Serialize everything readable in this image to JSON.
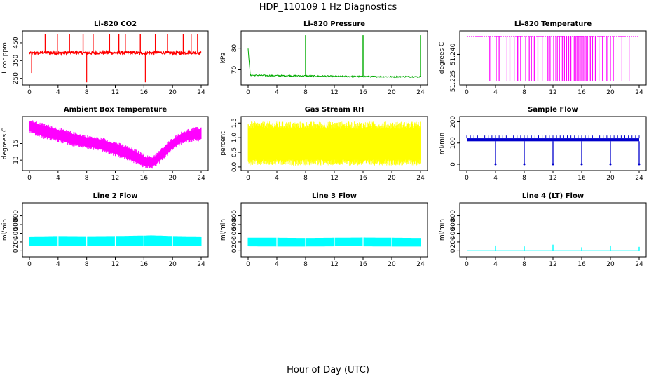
{
  "figure": {
    "title": "HDP_110109  1 Hz Diagnostics",
    "xlabel": "Hour of Day (UTC)"
  },
  "chart_data": [
    {
      "id": "co2",
      "type": "line",
      "title": "Li-820 CO2",
      "ylabel": "Licor ppm",
      "color": "#ff0000",
      "kind": "co2",
      "xlim": [
        0,
        24
      ],
      "ylim": [
        225,
        505
      ],
      "yticks": [
        250,
        350,
        450
      ],
      "xticks": [
        0,
        4,
        8,
        12,
        16,
        20,
        24
      ],
      "x": [
        0,
        0.2,
        1,
        2,
        3,
        4,
        5,
        6,
        7,
        8,
        9,
        10,
        11,
        12,
        13,
        14,
        15,
        16,
        17,
        18,
        19,
        20,
        21,
        22,
        23,
        24
      ],
      "y": [
        395,
        390,
        392,
        395,
        393,
        392,
        394,
        395,
        394,
        393,
        392,
        394,
        395,
        393,
        394,
        395,
        393,
        392,
        394,
        395,
        394,
        393,
        392,
        394,
        395,
        392
      ],
      "spikes_up": [
        2.2,
        3.9,
        5.6,
        7.5,
        8.9,
        11.2,
        12.5,
        13.4,
        15.5,
        17.6,
        19.3,
        21.5,
        22.6,
        23.5
      ],
      "spikes_up_value": 500,
      "spikes_down": [
        0.3,
        8.0,
        16.2
      ],
      "spikes_down_value": [
        280,
        228,
        228
      ]
    },
    {
      "id": "pressure",
      "type": "line",
      "title": "Li-820 Pressure",
      "ylabel": "kPa",
      "color": "#00aa00",
      "kind": "pressure",
      "xlim": [
        0,
        24
      ],
      "ylim": [
        64,
        87
      ],
      "yticks": [
        70,
        80
      ],
      "xticks": [
        0,
        4,
        8,
        12,
        16,
        20,
        24
      ],
      "x": [
        0,
        0.3,
        4,
        8,
        12,
        16,
        20,
        24
      ],
      "y": [
        80,
        67.5,
        67.3,
        67.2,
        67.0,
        66.9,
        66.8,
        66.8
      ],
      "spikes_up": [
        8.0,
        16.0,
        24.0
      ],
      "spikes_up_value": 86
    },
    {
      "id": "temperature",
      "type": "line",
      "title": "Li-820 Temperature",
      "ylabel": "degrees C",
      "color": "#ff00ff",
      "kind": "licortemp",
      "xlim": [
        0,
        24
      ],
      "ylim": [
        51.224,
        51.252
      ],
      "yticks": [
        51.225,
        51.24
      ],
      "xticks": [
        0,
        4,
        8,
        12,
        16,
        20,
        24
      ],
      "baseline": 51.25,
      "low_value": 51.225,
      "drops": [
        3.2,
        4.1,
        4.5,
        5.6,
        6.0,
        6.6,
        7.0,
        7.1,
        7.5,
        8.2,
        8.7,
        9.0,
        9.4,
        9.9,
        10.5,
        11.3,
        11.6,
        12.1,
        12.4,
        12.6,
        12.9,
        13.3,
        13.6,
        13.9,
        14.2,
        14.5,
        14.8,
        15.0,
        15.2,
        15.4,
        15.6,
        15.8,
        16.0,
        16.2,
        16.4,
        16.6,
        16.8,
        17.2,
        17.5,
        17.9,
        18.4,
        18.9,
        19.5,
        20.0,
        20.4,
        21.6,
        22.6
      ]
    },
    {
      "id": "boxtemp",
      "type": "line",
      "title": "Ambient Box Temperature",
      "ylabel": "degrees C",
      "color": "#ff00ff",
      "kind": "band",
      "xlim": [
        0,
        24
      ],
      "ylim": [
        12,
        18
      ],
      "yticks": [
        13,
        15
      ],
      "xticks": [
        0,
        4,
        8,
        12,
        16,
        20,
        24
      ],
      "x": [
        0,
        1,
        2,
        4,
        6,
        8,
        10,
        12,
        14,
        15,
        16,
        17,
        18,
        19,
        20,
        21,
        22,
        23,
        24
      ],
      "y_high": [
        17.6,
        17.3,
        17.1,
        16.6,
        16.1,
        15.7,
        15.4,
        14.9,
        14.3,
        13.9,
        13.4,
        13.1,
        13.7,
        14.6,
        15.4,
        16.0,
        16.4,
        16.6,
        16.7
      ],
      "y_low": [
        16.6,
        16.2,
        15.9,
        15.5,
        15.0,
        14.7,
        14.4,
        13.8,
        13.2,
        12.8,
        12.4,
        12.2,
        12.8,
        13.6,
        14.5,
        15.1,
        15.4,
        15.6,
        15.6
      ]
    },
    {
      "id": "rh",
      "type": "line",
      "title": "Gas Stream RH",
      "ylabel": "percent",
      "color": "#ffff00",
      "kind": "noise",
      "xlim": [
        0,
        24
      ],
      "ylim": [
        -0.05,
        1.65
      ],
      "yticks": [
        0.0,
        0.5,
        1.0,
        1.5
      ],
      "xticks": [
        0,
        4,
        8,
        12,
        16,
        20,
        24
      ],
      "band_low": 0.25,
      "band_high": 1.3,
      "spike_low": 0.05,
      "spike_high": 1.55
    },
    {
      "id": "sampleflow",
      "type": "line",
      "title": "Sample Flow",
      "ylabel": "ml/min",
      "color": "#0000cc",
      "kind": "flow",
      "xlim": [
        0,
        24
      ],
      "ylim": [
        -20,
        215
      ],
      "yticks": [
        0,
        100,
        200
      ],
      "xticks": [
        0,
        4,
        8,
        12,
        16,
        20,
        24
      ],
      "level_low": 108,
      "level_high": 122,
      "dash_top": 135,
      "dips": [
        4.0,
        8.0,
        12.0,
        16.0,
        20.0,
        24.0
      ],
      "dip_value": 0
    },
    {
      "id": "line2",
      "type": "line",
      "title": "Line 2 Flow",
      "ylabel": "ml/min",
      "color": "#00ffff",
      "kind": "block",
      "xlim": [
        0,
        24
      ],
      "ylim": [
        -90,
        1050
      ],
      "yticks": [
        0,
        200,
        400,
        600,
        800
      ],
      "xticks": [
        0,
        4,
        8,
        12,
        16,
        20,
        24
      ],
      "x": [
        0,
        4,
        8,
        12,
        16,
        17,
        20,
        24
      ],
      "y_high": [
        320,
        330,
        325,
        330,
        340,
        345,
        330,
        320
      ],
      "y_low": [
        120,
        120,
        115,
        120,
        125,
        125,
        120,
        115
      ],
      "gaps": [
        4.0,
        8.0,
        12.0,
        16.0,
        20.0
      ]
    },
    {
      "id": "line3",
      "type": "line",
      "title": "Line 3 Flow",
      "ylabel": "ml/min",
      "color": "#00ffff",
      "kind": "block",
      "xlim": [
        0,
        24
      ],
      "ylim": [
        -90,
        1050
      ],
      "yticks": [
        0,
        200,
        400,
        600,
        800
      ],
      "xticks": [
        0,
        4,
        8,
        12,
        16,
        20,
        24
      ],
      "x": [
        0,
        4,
        8,
        12,
        16,
        20,
        24
      ],
      "y_high": [
        290,
        290,
        285,
        290,
        295,
        290,
        285
      ],
      "y_low": [
        110,
        105,
        105,
        110,
        110,
        105,
        105
      ],
      "gaps": [
        4.0,
        8.0,
        12.0,
        16.0,
        20.0
      ]
    },
    {
      "id": "line4",
      "type": "line",
      "title": "Line 4 (LT) Flow",
      "ylabel": "ml/min",
      "color": "#00ffff",
      "kind": "lt",
      "xlim": [
        0,
        24
      ],
      "ylim": [
        -90,
        1050
      ],
      "yticks": [
        0,
        200,
        400,
        600,
        800
      ],
      "xticks": [
        0,
        4,
        8,
        12,
        16,
        20,
        24
      ],
      "base": 5,
      "spikes_up": [
        4.0,
        8.0,
        12.0,
        16.0,
        20.0,
        24.0
      ],
      "spike_values": [
        120,
        100,
        140,
        80,
        120,
        90
      ]
    }
  ]
}
